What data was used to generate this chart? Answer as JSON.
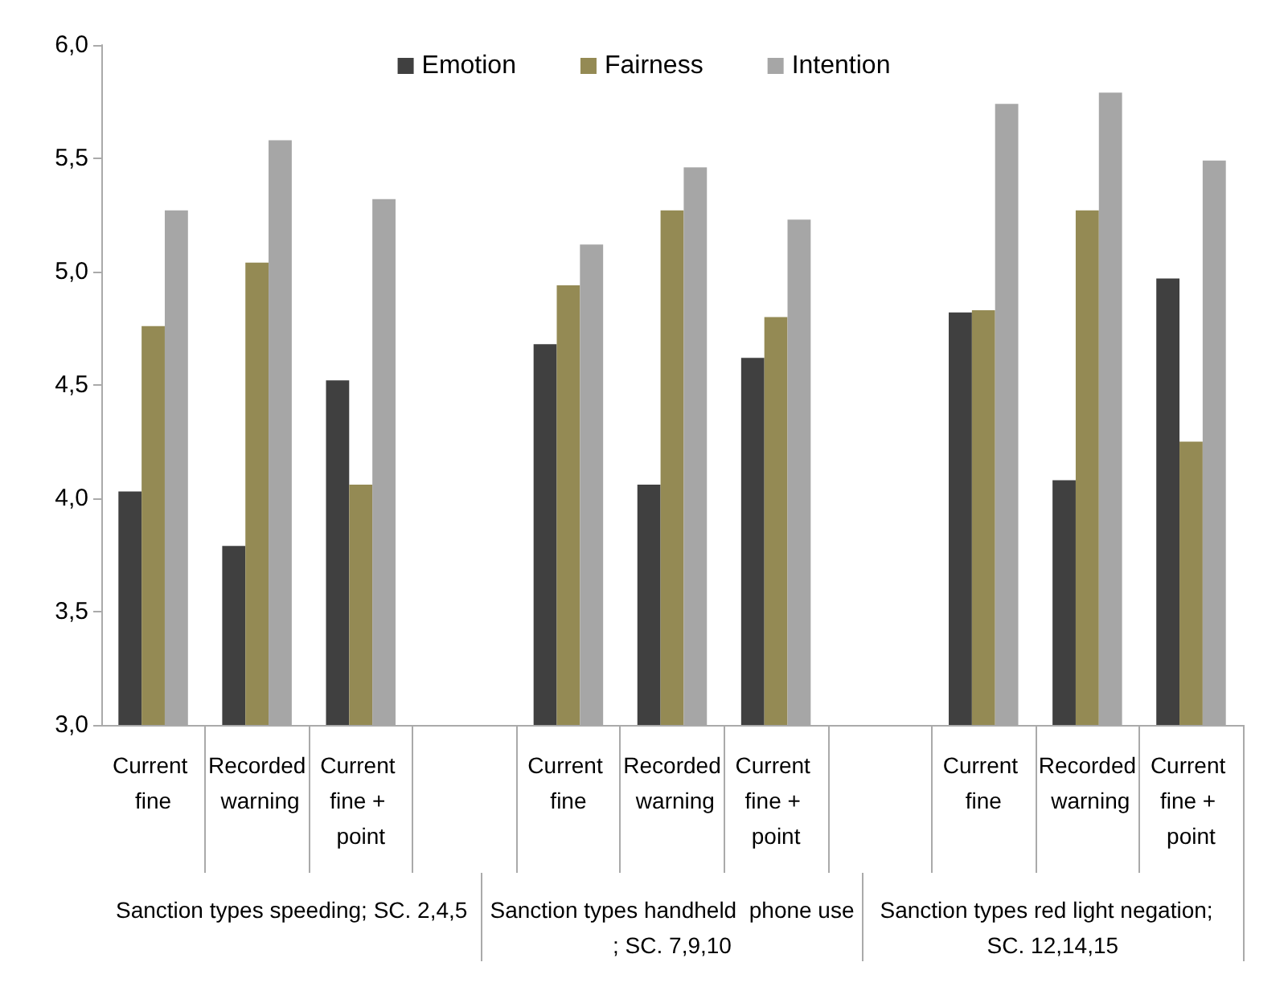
{
  "chart_data": {
    "type": "bar",
    "categories": [
      "Current fine",
      "Recorded warning",
      "Current fine + point",
      null,
      "Current fine",
      "Recorded warning",
      "Current fine + point",
      null,
      "Current fine",
      "Recorded warning",
      "Current fine + point"
    ],
    "series": [
      {
        "name": "Emotion",
        "color": "#404040",
        "values": [
          4.03,
          3.79,
          4.52,
          null,
          4.68,
          4.06,
          4.62,
          null,
          4.82,
          4.08,
          4.97
        ]
      },
      {
        "name": "Fairness",
        "color": "#948a54",
        "values": [
          4.76,
          5.04,
          4.06,
          null,
          4.94,
          5.27,
          4.8,
          null,
          4.83,
          5.27,
          4.25
        ]
      },
      {
        "name": "Intention",
        "color": "#a6a6a6",
        "values": [
          5.27,
          5.58,
          5.32,
          null,
          5.12,
          5.46,
          5.23,
          null,
          5.74,
          5.79,
          5.49
        ]
      }
    ],
    "ylim": [
      3,
      6
    ],
    "yticks": [
      {
        "value": 3,
        "label": "3,0"
      },
      {
        "value": 3.5,
        "label": "3,5"
      },
      {
        "value": 4,
        "label": "4,0"
      },
      {
        "value": 4.5,
        "label": "4,5"
      },
      {
        "value": 5,
        "label": "5,0"
      },
      {
        "value": 5.5,
        "label": "5,5"
      },
      {
        "value": 6,
        "label": "6,0"
      }
    ],
    "annotations": [
      "Sanction types speeding; SC. 2,4,5",
      "Sanction types handheld  phone use; SC. 7,9,10",
      "Sanction types red light negation;  SC. 12,14,15"
    ],
    "grid": false,
    "legend": "top"
  }
}
